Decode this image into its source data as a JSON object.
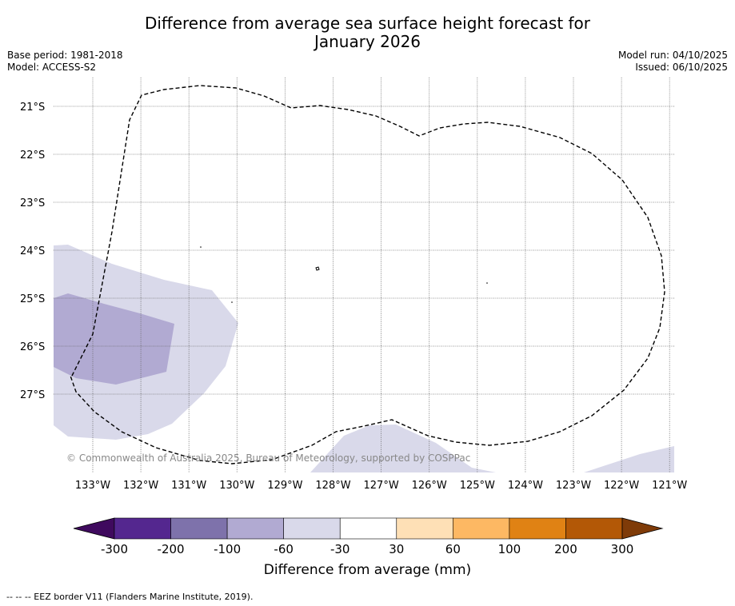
{
  "header": {
    "title_line1": "Difference from average sea surface height forecast for",
    "title_line2": "January 2026",
    "base_period": "Base period: 1981-2018",
    "model": "Model: ACCESS-S2",
    "model_run": "Model run: 04/10/2025",
    "issued": "Issued: 06/10/2025"
  },
  "map": {
    "lat_labels": [
      "21°S",
      "22°S",
      "23°S",
      "24°S",
      "25°S",
      "26°S",
      "27°S"
    ],
    "lon_labels": [
      "133°W",
      "132°W",
      "131°W",
      "130°W",
      "129°W",
      "128°W",
      "127°W",
      "126°W",
      "125°W",
      "124°W",
      "123°W",
      "122°W",
      "121°W"
    ],
    "copyright": "© Commonwealth of Australia 2025, Bureau of Meteorology, supported by COSPPac",
    "colors": {
      "grid": "#666666",
      "eez": "#000000",
      "shade_light": "#d9d9ea",
      "shade_mid": "#b1aad2"
    }
  },
  "colorbar": {
    "label": "Difference from average (mm)",
    "ticks": [
      "-300",
      "-200",
      "-100",
      "-60",
      "-30",
      "30",
      "60",
      "100",
      "200",
      "300"
    ],
    "colors": [
      "#3f0a5e",
      "#54278f",
      "#7e72ab",
      "#b1aad2",
      "#d9d9ea",
      "#ffffff",
      "#fee0b6",
      "#fdb863",
      "#e08214",
      "#b35806",
      "#7f3b08"
    ]
  },
  "footer": {
    "legend": "-- -- -- EEZ border V11 (Flanders Marine Institute, 2019)."
  }
}
